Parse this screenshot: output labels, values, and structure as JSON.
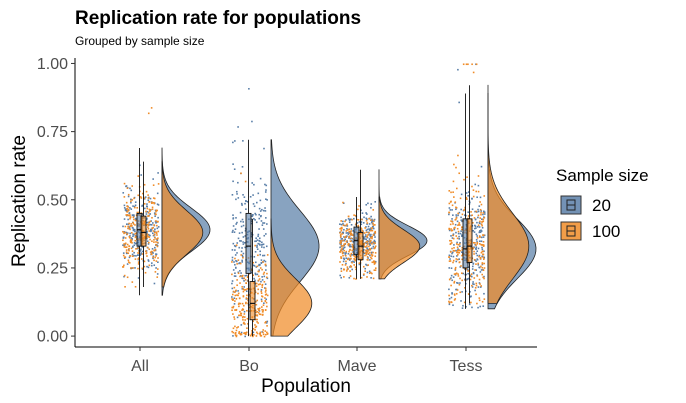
{
  "chart_data": {
    "type": "raincloud",
    "title": "Replication rate for populations",
    "subtitle": "Grouped by sample size",
    "xlabel": "Population",
    "ylabel": "Replication rate",
    "categories": [
      "All",
      "Bo",
      "Mave",
      "Tess"
    ],
    "ylim": [
      -0.04,
      1.02
    ],
    "yticks": [
      0.0,
      0.25,
      0.5,
      0.75,
      1.0
    ],
    "ytick_labels": [
      "0.00",
      "0.25",
      "0.50",
      "0.75",
      "1.00"
    ],
    "grid": false,
    "legend": {
      "title": "Sample size",
      "position": "right",
      "entries": [
        {
          "label": "20",
          "color": "#5A7FA8"
        },
        {
          "label": "100",
          "color": "#F08C28"
        }
      ]
    },
    "series": [
      {
        "name": "20",
        "color": "#5A7FA8",
        "groups": [
          {
            "category": "All",
            "min": 0.15,
            "q1": 0.33,
            "median": 0.39,
            "q3": 0.45,
            "max": 0.69,
            "mean": 0.39,
            "sd": 0.08,
            "n": 400,
            "jitter_outliers": []
          },
          {
            "category": "Bo",
            "min": 0.0,
            "q1": 0.23,
            "median": 0.33,
            "q3": 0.45,
            "max": 0.72,
            "mean": 0.33,
            "sd": 0.13,
            "n": 400,
            "jitter_outliers": [
              0.91,
              0.79,
              0.77
            ]
          },
          {
            "category": "Mave",
            "min": 0.21,
            "q1": 0.3,
            "median": 0.35,
            "q3": 0.4,
            "max": 0.51,
            "mean": 0.35,
            "sd": 0.055,
            "n": 400,
            "jitter_outliers": []
          },
          {
            "category": "Tess",
            "min": 0.1,
            "q1": 0.25,
            "median": 0.32,
            "q3": 0.43,
            "max": 0.89,
            "mean": 0.32,
            "sd": 0.11,
            "n": 400,
            "jitter_outliers": [
              0.98,
              1.0,
              0.86
            ]
          }
        ]
      },
      {
        "name": "100",
        "color": "#F08C28",
        "groups": [
          {
            "category": "All",
            "min": 0.18,
            "q1": 0.33,
            "median": 0.38,
            "q3": 0.44,
            "max": 0.64,
            "mean": 0.38,
            "sd": 0.08,
            "n": 350,
            "jitter_outliers": [
              0.84,
              0.82
            ]
          },
          {
            "category": "Bo",
            "min": 0.0,
            "q1": 0.06,
            "median": 0.12,
            "q3": 0.2,
            "max": 0.43,
            "mean": 0.13,
            "sd": 0.09,
            "n": 350,
            "jitter_outliers": [
              0.57,
              0.6
            ]
          },
          {
            "category": "Mave",
            "min": 0.21,
            "q1": 0.28,
            "median": 0.33,
            "q3": 0.38,
            "max": 0.61,
            "mean": 0.33,
            "sd": 0.06,
            "n": 350,
            "jitter_outliers": []
          },
          {
            "category": "Tess",
            "min": 0.12,
            "q1": 0.27,
            "median": 0.33,
            "q3": 0.43,
            "max": 0.92,
            "mean": 0.35,
            "sd": 0.12,
            "n": 350,
            "jitter_outliers": [
              1.0,
              1.0,
              1.0,
              1.0,
              1.0,
              0.97
            ]
          }
        ]
      }
    ]
  }
}
